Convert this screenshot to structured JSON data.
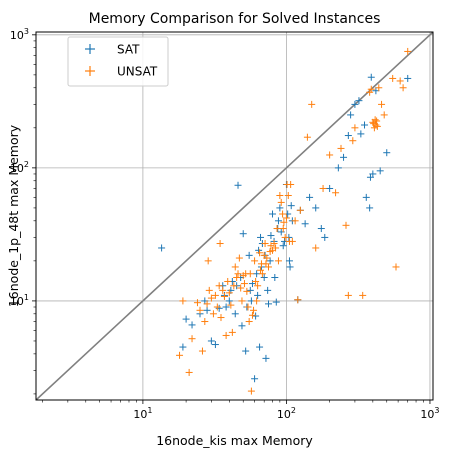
{
  "chart_data": {
    "type": "scatter",
    "title": "Memory Comparison for Solved Instances",
    "xlabel": "16node_kis max Memory",
    "ylabel": "16node_1p_48t max Memory",
    "xscale": "log",
    "yscale": "log",
    "xlim": [
      1.8,
      1050
    ],
    "ylim": [
      1.8,
      1050
    ],
    "x_ticks": [
      10,
      100,
      1000
    ],
    "y_ticks": [
      10,
      100,
      1000
    ],
    "grid": true,
    "legend_position": "top-left",
    "diagonal_line": true,
    "marker": "plus",
    "colors": {
      "diagonal": "#808080",
      "grid": "#b0b0b0"
    },
    "series": [
      {
        "name": "SAT",
        "color": "#1f77b4",
        "points": [
          [
            13.5,
            25
          ],
          [
            19,
            4.5
          ],
          [
            20,
            7.3
          ],
          [
            22,
            6.6
          ],
          [
            25,
            8
          ],
          [
            27,
            10
          ],
          [
            28,
            8.5
          ],
          [
            30,
            5
          ],
          [
            32,
            4.7
          ],
          [
            34,
            8.8
          ],
          [
            36,
            13
          ],
          [
            37,
            11
          ],
          [
            38,
            9
          ],
          [
            40,
            10
          ],
          [
            41,
            12
          ],
          [
            42,
            14
          ],
          [
            44,
            8
          ],
          [
            45,
            13
          ],
          [
            46,
            74
          ],
          [
            48,
            15
          ],
          [
            49,
            6.5
          ],
          [
            50,
            32
          ],
          [
            52,
            4.2
          ],
          [
            53,
            9
          ],
          [
            55,
            22
          ],
          [
            56,
            12
          ],
          [
            57,
            10
          ],
          [
            58,
            13.5
          ],
          [
            60,
            2.6
          ],
          [
            61,
            7.7
          ],
          [
            62,
            16
          ],
          [
            63,
            11
          ],
          [
            64,
            24
          ],
          [
            65,
            4.5
          ],
          [
            66,
            30
          ],
          [
            67,
            18
          ],
          [
            68,
            27
          ],
          [
            70,
            15
          ],
          [
            71,
            22
          ],
          [
            72,
            3.7
          ],
          [
            74,
            12
          ],
          [
            75,
            9.5
          ],
          [
            77,
            20
          ],
          [
            78,
            31
          ],
          [
            80,
            45
          ],
          [
            82,
            28
          ],
          [
            83,
            15
          ],
          [
            85,
            9.8
          ],
          [
            87,
            35
          ],
          [
            88,
            40
          ],
          [
            90,
            50
          ],
          [
            92,
            33
          ],
          [
            95,
            26
          ],
          [
            97,
            28
          ],
          [
            100,
            75
          ],
          [
            102,
            45
          ],
          [
            104,
            30
          ],
          [
            105,
            20
          ],
          [
            106,
            18
          ],
          [
            108,
            52
          ],
          [
            110,
            40
          ],
          [
            120,
            10.2
          ],
          [
            125,
            48
          ],
          [
            135,
            38
          ],
          [
            145,
            60
          ],
          [
            160,
            50
          ],
          [
            175,
            35
          ],
          [
            185,
            30
          ],
          [
            200,
            70
          ],
          [
            230,
            100
          ],
          [
            250,
            120
          ],
          [
            270,
            175
          ],
          [
            280,
            250
          ],
          [
            300,
            300
          ],
          [
            320,
            320
          ],
          [
            330,
            180
          ],
          [
            350,
            210
          ],
          [
            360,
            60
          ],
          [
            380,
            50
          ],
          [
            385,
            85
          ],
          [
            390,
            480
          ],
          [
            400,
            90
          ],
          [
            420,
            380
          ],
          [
            450,
            95
          ],
          [
            500,
            130
          ],
          [
            700,
            470
          ]
        ]
      },
      {
        "name": "UNSAT",
        "color": "#ff7f0e",
        "points": [
          [
            18,
            3.9
          ],
          [
            19,
            10
          ],
          [
            21,
            2.9
          ],
          [
            22,
            5.2
          ],
          [
            24,
            9.7
          ],
          [
            25,
            8.5
          ],
          [
            26,
            4.2
          ],
          [
            27,
            7
          ],
          [
            28,
            9.5
          ],
          [
            28.5,
            20
          ],
          [
            29,
            12
          ],
          [
            30,
            10.5
          ],
          [
            31,
            8
          ],
          [
            32,
            11
          ],
          [
            33,
            9
          ],
          [
            34,
            13
          ],
          [
            34.5,
            27
          ],
          [
            35,
            7.5
          ],
          [
            36,
            12
          ],
          [
            37,
            10.8
          ],
          [
            38,
            5.5
          ],
          [
            39,
            14
          ],
          [
            40,
            11.5
          ],
          [
            41,
            9.3
          ],
          [
            42,
            5.8
          ],
          [
            43,
            13
          ],
          [
            44,
            18
          ],
          [
            45,
            15
          ],
          [
            46,
            16
          ],
          [
            47,
            21
          ],
          [
            48,
            12.5
          ],
          [
            49,
            10
          ],
          [
            50,
            15.5
          ],
          [
            51,
            13.5
          ],
          [
            52,
            16
          ],
          [
            53,
            11.8
          ],
          [
            54,
            9
          ],
          [
            55,
            7
          ],
          [
            56,
            16
          ],
          [
            57,
            2.1
          ],
          [
            58,
            7.8
          ],
          [
            59,
            8.5
          ],
          [
            60,
            20
          ],
          [
            61,
            14
          ],
          [
            62,
            10
          ],
          [
            63,
            13
          ],
          [
            65,
            23
          ],
          [
            66,
            17
          ],
          [
            67,
            19
          ],
          [
            68,
            16
          ],
          [
            70,
            22
          ],
          [
            71,
            27
          ],
          [
            72,
            19
          ],
          [
            73,
            21
          ],
          [
            75,
            18
          ],
          [
            77,
            23.5
          ],
          [
            78,
            26
          ],
          [
            80,
            24
          ],
          [
            82,
            27
          ],
          [
            84,
            25
          ],
          [
            86,
            35
          ],
          [
            88,
            20
          ],
          [
            90,
            62
          ],
          [
            92,
            55
          ],
          [
            94,
            45
          ],
          [
            95,
            35
          ],
          [
            96,
            39
          ],
          [
            98,
            30
          ],
          [
            100,
            42
          ],
          [
            101,
            75
          ],
          [
            103,
            62
          ],
          [
            105,
            28
          ],
          [
            107,
            75
          ],
          [
            110,
            28
          ],
          [
            115,
            40
          ],
          [
            120,
            10.2
          ],
          [
            125,
            48
          ],
          [
            140,
            170
          ],
          [
            150,
            300
          ],
          [
            160,
            25
          ],
          [
            180,
            70
          ],
          [
            200,
            125
          ],
          [
            220,
            65
          ],
          [
            240,
            140
          ],
          [
            260,
            37
          ],
          [
            270,
            11
          ],
          [
            290,
            160
          ],
          [
            300,
            200
          ],
          [
            340,
            11
          ],
          [
            380,
            370
          ],
          [
            390,
            390
          ],
          [
            400,
            220
          ],
          [
            405,
            215
          ],
          [
            410,
            200
          ],
          [
            415,
            230
          ],
          [
            420,
            210
          ],
          [
            425,
            225
          ],
          [
            430,
            205
          ],
          [
            440,
            400
          ],
          [
            460,
            300
          ],
          [
            480,
            250
          ],
          [
            550,
            470
          ],
          [
            580,
            18
          ],
          [
            620,
            450
          ],
          [
            650,
            400
          ],
          [
            700,
            750
          ]
        ]
      }
    ]
  }
}
